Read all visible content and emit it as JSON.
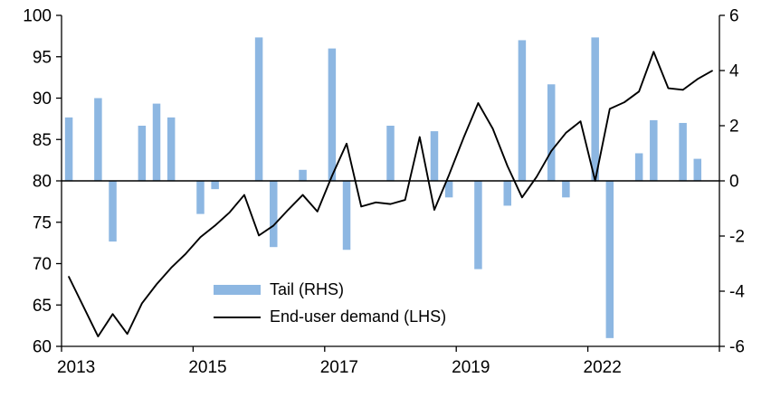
{
  "chart_data": {
    "type": "combo_bar_line",
    "title": "",
    "background": "#ffffff",
    "x": {
      "unit": "quarter",
      "start": "2013Q1",
      "n_points": 45,
      "tick_labels": [
        "2013",
        "2015",
        "2017",
        "2019",
        "2022"
      ],
      "tick_indices": [
        0,
        9,
        18,
        27,
        36
      ],
      "label_interval_quarters": 9
    },
    "left_axis": {
      "side": "left",
      "min": 60,
      "max": 100,
      "ticks": [
        60,
        65,
        70,
        75,
        80,
        85,
        90,
        95,
        100
      ]
    },
    "right_axis": {
      "side": "right",
      "min": -6,
      "max": 6,
      "ticks": [
        -6,
        -4,
        -2,
        0,
        2,
        4,
        6
      ]
    },
    "zero_baseline": {
      "right_value": 0,
      "left_value_equivalent": 80
    },
    "series": [
      {
        "name": "Tail (RHS)",
        "type": "bar",
        "axis": "right",
        "color": "#8DB7E2",
        "values": [
          2.3,
          0,
          3.0,
          -2.2,
          0,
          2.0,
          2.8,
          2.3,
          0,
          -1.2,
          -0.3,
          0,
          0,
          5.2,
          -2.4,
          0,
          0.4,
          0,
          4.8,
          -2.5,
          0,
          0,
          2.0,
          0,
          0,
          1.8,
          -0.6,
          0,
          -3.2,
          0,
          -0.9,
          5.1,
          0,
          3.5,
          -0.6,
          0,
          5.2,
          -5.7,
          0,
          1.0,
          2.2,
          0,
          2.1,
          0.8,
          0
        ]
      },
      {
        "name": "End-user demand (LHS)",
        "type": "line",
        "axis": "left",
        "color": "#000000",
        "values": [
          68.4,
          64.8,
          61.2,
          63.9,
          61.5,
          65.2,
          67.5,
          69.5,
          71.2,
          73.2,
          74.6,
          76.2,
          78.3,
          73.4,
          74.6,
          76.5,
          78.3,
          76.3,
          80.6,
          84.5,
          76.9,
          77.4,
          77.2,
          77.7,
          85.3,
          76.5,
          80.7,
          85.2,
          89.4,
          86.3,
          81.8,
          78.0,
          80.5,
          83.6,
          85.8,
          87.2,
          80.0,
          88.7,
          89.5,
          90.8,
          95.6,
          91.2,
          91.0,
          92.3,
          93.3
        ]
      }
    ],
    "legend": {
      "position": "inside-bottom-left",
      "entries": [
        "Tail (RHS)",
        "End-user demand (LHS)"
      ]
    },
    "grid": "off"
  }
}
